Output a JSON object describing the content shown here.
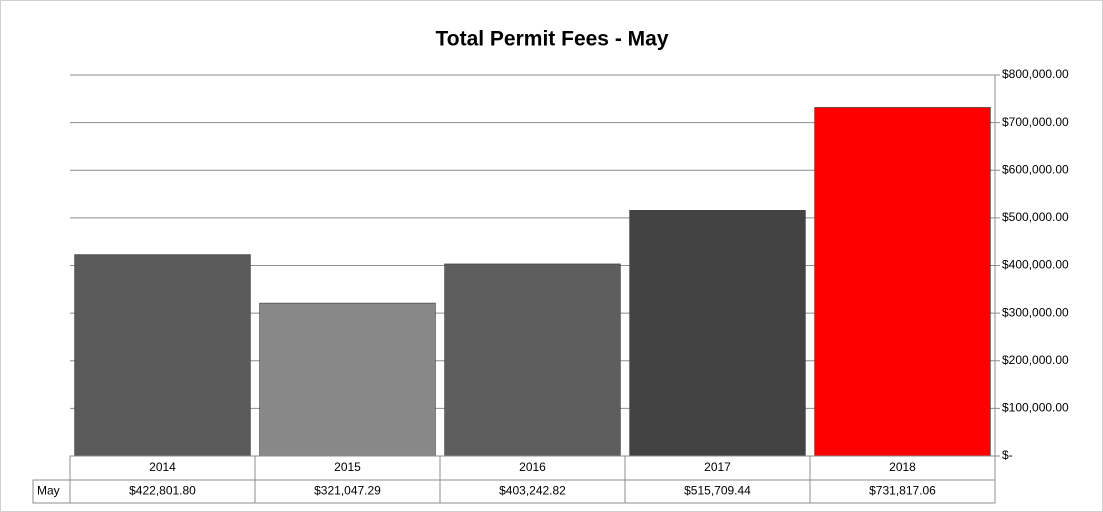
{
  "chart_data": {
    "type": "bar",
    "title": "Total Permit Fees - May",
    "categories": [
      "2014",
      "2015",
      "2016",
      "2017",
      "2018"
    ],
    "series": [
      {
        "name": "May",
        "values": [
          422801.8,
          321047.29,
          403242.82,
          515709.44,
          731817.06
        ],
        "value_labels": [
          "$422,801.80",
          "$321,047.29",
          "$403,242.82",
          "$515,709.44",
          "$731,817.06"
        ],
        "colors": [
          "#5a5a5a",
          "#888888",
          "#5e5e5e",
          "#434343",
          "#ff0000"
        ]
      }
    ],
    "ylim": [
      0,
      800000
    ],
    "yticks": [
      {
        "value": 0,
        "label": "$-"
      },
      {
        "value": 100000,
        "label": "$100,000.00"
      },
      {
        "value": 200000,
        "label": "$200,000.00"
      },
      {
        "value": 300000,
        "label": "$300,000.00"
      },
      {
        "value": 400000,
        "label": "$400,000.00"
      },
      {
        "value": 500000,
        "label": "$500,000.00"
      },
      {
        "value": 600000,
        "label": "$600,000.00"
      },
      {
        "value": 700000,
        "label": "$700,000.00"
      },
      {
        "value": 800000,
        "label": "$800,000.00"
      }
    ],
    "grid": true,
    "y_axis_side": "right",
    "data_table": true
  }
}
